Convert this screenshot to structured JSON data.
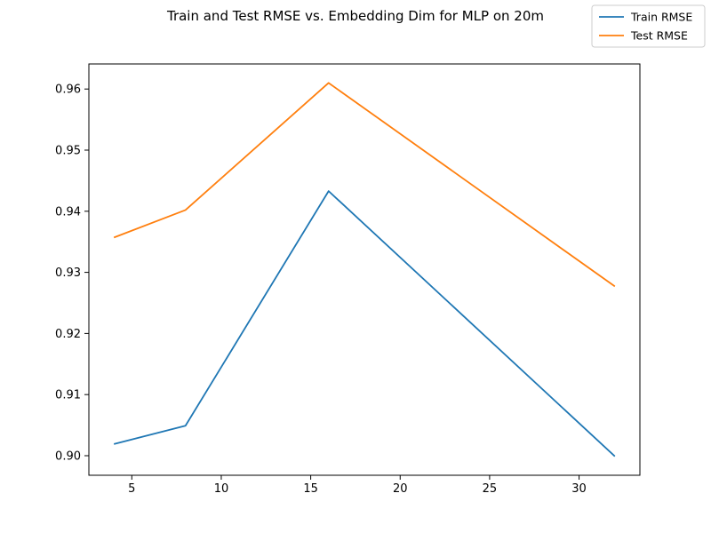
{
  "chart_data": {
    "type": "line",
    "title": "Train and Test RMSE vs. Embedding Dim for MLP on 20m",
    "xlabel": "",
    "ylabel": "",
    "x": [
      4,
      8,
      16,
      32
    ],
    "xlim": [
      2.6,
      33.4
    ],
    "ylim": [
      0.8968,
      0.9641
    ],
    "xticks": [
      5,
      10,
      15,
      20,
      25,
      30
    ],
    "yticks": [
      0.9,
      0.91,
      0.92,
      0.93,
      0.94,
      0.95,
      0.96
    ],
    "xtick_labels": [
      "5",
      "10",
      "15",
      "20",
      "25",
      "30"
    ],
    "ytick_labels": [
      "0.90",
      "0.91",
      "0.92",
      "0.93",
      "0.94",
      "0.95",
      "0.96"
    ],
    "grid": false,
    "legend_position": "top-right",
    "series": [
      {
        "name": "Train RMSE",
        "color": "#1f77b4",
        "values": [
          0.9019,
          0.9049,
          0.9433,
          0.8999
        ]
      },
      {
        "name": "Test RMSE",
        "color": "#ff7f0e",
        "values": [
          0.9357,
          0.9402,
          0.961,
          0.9277
        ]
      }
    ]
  }
}
